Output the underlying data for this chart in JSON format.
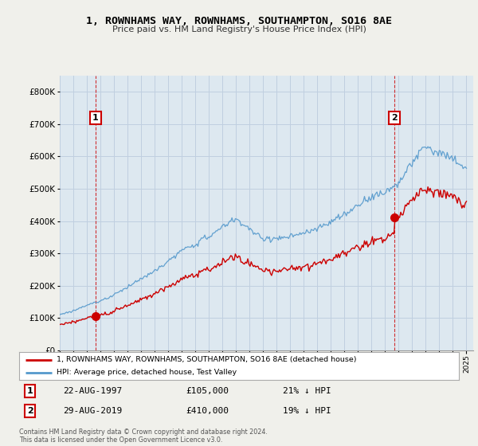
{
  "title": "1, ROWNHAMS WAY, ROWNHAMS, SOUTHAMPTON, SO16 8AE",
  "subtitle": "Price paid vs. HM Land Registry's House Price Index (HPI)",
  "legend_line1": "1, ROWNHAMS WAY, ROWNHAMS, SOUTHAMPTON, SO16 8AE (detached house)",
  "legend_line2": "HPI: Average price, detached house, Test Valley",
  "transaction1_date": "22-AUG-1997",
  "transaction1_price": "£105,000",
  "transaction1_hpi": "21% ↓ HPI",
  "transaction2_date": "29-AUG-2019",
  "transaction2_price": "£410,000",
  "transaction2_hpi": "19% ↓ HPI",
  "footnote": "Contains HM Land Registry data © Crown copyright and database right 2024.\nThis data is licensed under the Open Government Licence v3.0.",
  "xmin": 1995.0,
  "xmax": 2025.5,
  "ymin": 0,
  "ymax": 850000,
  "sale_color": "#cc0000",
  "hpi_color": "#5599cc",
  "bg_color": "#f0f0eb",
  "plot_bg_color": "#dde8f0",
  "grid_color": "#c0cfe0",
  "vline_color": "#cc0000",
  "label_box_color": "#cc0000",
  "t1_year": 1997.64,
  "t2_year": 2019.66,
  "t1_price": 105000,
  "t2_price": 410000
}
